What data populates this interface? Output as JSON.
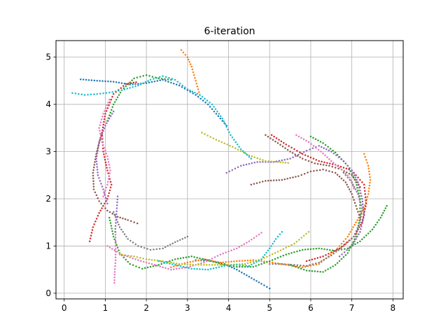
{
  "chart_data": {
    "type": "scatter",
    "title": "6-iteration",
    "xlabel": "",
    "ylabel": "",
    "xlim": [
      -0.2,
      8.25
    ],
    "ylim": [
      -0.12,
      5.35
    ],
    "xticks": [
      0,
      1,
      2,
      3,
      4,
      5,
      6,
      7,
      8
    ],
    "yticks": [
      0,
      1,
      2,
      3,
      4,
      5
    ],
    "grid": true,
    "marker": "small dots",
    "series": [
      {
        "color": "#1f77b4",
        "points": [
          [
            0.4,
            4.53
          ],
          [
            0.8,
            4.5
          ],
          [
            1.2,
            4.48
          ],
          [
            1.6,
            4.42
          ],
          [
            2.0,
            4.45
          ],
          [
            2.4,
            4.52
          ],
          [
            2.8,
            4.4
          ],
          [
            3.2,
            4.2
          ],
          [
            3.5,
            4.0
          ],
          [
            3.75,
            3.75
          ],
          [
            3.95,
            3.55
          ]
        ]
      },
      {
        "color": "#1f77b4",
        "points": [
          [
            3.2,
            0.7
          ],
          [
            3.6,
            0.68
          ],
          [
            3.9,
            0.62
          ],
          [
            4.2,
            0.5
          ],
          [
            4.5,
            0.35
          ],
          [
            4.8,
            0.2
          ],
          [
            5.0,
            0.1
          ]
        ]
      },
      {
        "color": "#ff7f0e",
        "points": [
          [
            2.85,
            5.15
          ],
          [
            3.0,
            5.0
          ],
          [
            3.1,
            4.8
          ],
          [
            3.2,
            4.5
          ],
          [
            3.3,
            4.2
          ]
        ]
      },
      {
        "color": "#ff7f0e",
        "points": [
          [
            2.6,
            0.55
          ],
          [
            3.0,
            0.65
          ],
          [
            3.4,
            0.72
          ],
          [
            3.8,
            0.65
          ],
          [
            4.2,
            0.68
          ],
          [
            4.6,
            0.7
          ],
          [
            5.0,
            0.66
          ],
          [
            5.4,
            0.6
          ],
          [
            5.8,
            0.55
          ],
          [
            6.2,
            0.62
          ],
          [
            6.6,
            0.9
          ],
          [
            6.9,
            1.2
          ],
          [
            7.1,
            1.5
          ],
          [
            7.3,
            1.8
          ],
          [
            7.4,
            2.1
          ],
          [
            7.45,
            2.4
          ],
          [
            7.4,
            2.7
          ],
          [
            7.3,
            2.95
          ]
        ]
      },
      {
        "color": "#2ca02c",
        "points": [
          [
            1.05,
            3.65
          ],
          [
            1.2,
            4.0
          ],
          [
            1.4,
            4.3
          ],
          [
            1.7,
            4.55
          ],
          [
            2.0,
            4.62
          ],
          [
            2.3,
            4.55
          ],
          [
            2.6,
            4.52
          ]
        ]
      },
      {
        "color": "#2ca02c",
        "points": [
          [
            1.1,
            1.6
          ],
          [
            1.2,
            1.2
          ],
          [
            1.35,
            0.85
          ],
          [
            1.6,
            0.62
          ],
          [
            1.9,
            0.52
          ],
          [
            2.3,
            0.6
          ],
          [
            2.7,
            0.72
          ],
          [
            3.1,
            0.78
          ],
          [
            3.5,
            0.7
          ],
          [
            3.9,
            0.6
          ],
          [
            4.2,
            0.56
          ],
          [
            4.6,
            0.56
          ],
          [
            5.0,
            0.68
          ],
          [
            5.4,
            0.82
          ],
          [
            5.8,
            0.92
          ],
          [
            6.2,
            0.95
          ],
          [
            6.6,
            0.9
          ],
          [
            6.9,
            0.95
          ],
          [
            7.2,
            1.1
          ],
          [
            7.5,
            1.35
          ],
          [
            7.7,
            1.6
          ],
          [
            7.85,
            1.85
          ]
        ]
      },
      {
        "color": "#2ca02c",
        "points": [
          [
            6.0,
            3.32
          ],
          [
            6.3,
            3.18
          ],
          [
            6.6,
            2.98
          ],
          [
            6.9,
            2.7
          ],
          [
            7.1,
            2.35
          ],
          [
            7.2,
            2.0
          ],
          [
            7.2,
            1.6
          ],
          [
            7.1,
            1.2
          ],
          [
            6.9,
            0.85
          ],
          [
            6.6,
            0.6
          ],
          [
            6.3,
            0.45
          ],
          [
            5.9,
            0.48
          ],
          [
            5.5,
            0.6
          ]
        ]
      },
      {
        "color": "#d62728",
        "points": [
          [
            1.75,
            4.47
          ],
          [
            1.5,
            4.43
          ],
          [
            1.2,
            4.22
          ],
          [
            1.0,
            3.8
          ],
          [
            0.92,
            3.4
          ],
          [
            0.95,
            3.0
          ],
          [
            1.05,
            2.6
          ],
          [
            1.15,
            2.3
          ],
          [
            1.05,
            2.0
          ],
          [
            0.85,
            1.7
          ],
          [
            0.7,
            1.4
          ],
          [
            0.62,
            1.1
          ]
        ]
      },
      {
        "color": "#d62728",
        "points": [
          [
            5.05,
            3.35
          ],
          [
            5.4,
            3.15
          ],
          [
            5.8,
            2.95
          ],
          [
            6.2,
            2.8
          ],
          [
            6.6,
            2.72
          ],
          [
            7.0,
            2.6
          ],
          [
            7.3,
            2.3
          ],
          [
            7.35,
            1.9
          ],
          [
            7.25,
            1.5
          ],
          [
            7.05,
            1.2
          ],
          [
            6.7,
            0.95
          ],
          [
            6.3,
            0.78
          ],
          [
            5.9,
            0.68
          ]
        ]
      },
      {
        "color": "#9467bd",
        "points": [
          [
            1.2,
            3.85
          ],
          [
            1.0,
            3.55
          ],
          [
            0.85,
            3.2
          ],
          [
            0.78,
            2.85
          ],
          [
            0.82,
            2.5
          ],
          [
            0.95,
            2.2
          ],
          [
            1.05,
            1.9
          ]
        ]
      },
      {
        "color": "#9467bd",
        "points": [
          [
            3.95,
            2.55
          ],
          [
            4.3,
            2.7
          ],
          [
            4.7,
            2.78
          ],
          [
            5.1,
            2.78
          ],
          [
            5.5,
            2.85
          ],
          [
            5.9,
            3.02
          ],
          [
            6.2,
            3.12
          ],
          [
            6.5,
            3.0
          ],
          [
            6.8,
            2.8
          ],
          [
            7.0,
            2.6
          ],
          [
            7.15,
            2.35
          ],
          [
            7.25,
            2.0
          ],
          [
            7.3,
            1.65
          ],
          [
            7.2,
            1.3
          ],
          [
            7.0,
            1.0
          ],
          [
            6.7,
            0.78
          ]
        ]
      },
      {
        "color": "#8c564b",
        "points": [
          [
            0.9,
            3.35
          ],
          [
            0.78,
            2.95
          ],
          [
            0.7,
            2.55
          ],
          [
            0.72,
            2.2
          ],
          [
            0.85,
            1.95
          ],
          [
            1.05,
            1.75
          ],
          [
            1.3,
            1.62
          ],
          [
            1.55,
            1.55
          ],
          [
            1.78,
            1.48
          ]
        ]
      },
      {
        "color": "#8c564b",
        "points": [
          [
            4.55,
            2.3
          ],
          [
            4.9,
            2.38
          ],
          [
            5.3,
            2.4
          ],
          [
            5.7,
            2.48
          ],
          [
            6.0,
            2.58
          ],
          [
            6.3,
            2.62
          ],
          [
            6.6,
            2.55
          ],
          [
            6.85,
            2.35
          ],
          [
            7.0,
            2.1
          ],
          [
            7.1,
            1.85
          ],
          [
            7.2,
            1.6
          ]
        ]
      },
      {
        "color": "#8c564b",
        "points": [
          [
            4.9,
            3.35
          ],
          [
            5.2,
            3.18
          ],
          [
            5.5,
            3.0
          ],
          [
            5.8,
            2.85
          ],
          [
            6.1,
            2.75
          ],
          [
            6.45,
            2.7
          ],
          [
            6.75,
            2.62
          ],
          [
            7.0,
            2.5
          ],
          [
            7.2,
            2.25
          ]
        ]
      },
      {
        "color": "#e377c2",
        "points": [
          [
            1.1,
            4.1
          ],
          [
            0.95,
            3.8
          ],
          [
            0.85,
            3.5
          ],
          [
            0.92,
            3.2
          ],
          [
            1.05,
            2.9
          ],
          [
            1.12,
            2.6
          ],
          [
            1.05,
            2.3
          ],
          [
            0.95,
            2.05
          ]
        ]
      },
      {
        "color": "#e377c2",
        "points": [
          [
            1.05,
            1.0
          ],
          [
            1.4,
            0.82
          ],
          [
            1.8,
            0.7
          ],
          [
            2.2,
            0.6
          ],
          [
            2.6,
            0.5
          ],
          [
            3.0,
            0.55
          ],
          [
            3.4,
            0.65
          ],
          [
            3.8,
            0.82
          ],
          [
            4.2,
            0.95
          ],
          [
            4.5,
            1.1
          ],
          [
            4.8,
            1.28
          ]
        ]
      },
      {
        "color": "#e377c2",
        "points": [
          [
            5.65,
            3.35
          ],
          [
            5.95,
            3.2
          ],
          [
            6.25,
            3.0
          ],
          [
            6.5,
            2.8
          ],
          [
            6.75,
            2.62
          ],
          [
            6.95,
            2.45
          ],
          [
            7.05,
            2.22
          ]
        ]
      },
      {
        "color": "#7f7f7f",
        "points": [
          [
            1.2,
            1.72
          ],
          [
            1.35,
            1.4
          ],
          [
            1.55,
            1.15
          ],
          [
            1.8,
            1.0
          ],
          [
            2.1,
            0.92
          ],
          [
            2.4,
            0.95
          ],
          [
            2.7,
            1.08
          ],
          [
            3.0,
            1.2
          ]
        ]
      },
      {
        "color": "#7f7f7f",
        "points": [
          [
            5.0,
            0.62
          ],
          [
            5.3,
            0.62
          ],
          [
            5.6,
            0.6
          ],
          [
            5.9,
            0.58
          ],
          [
            6.2,
            0.65
          ],
          [
            6.5,
            0.8
          ],
          [
            6.8,
            1.0
          ],
          [
            7.05,
            1.2
          ],
          [
            7.2,
            1.5
          ],
          [
            7.25,
            1.8
          ],
          [
            7.15,
            2.1
          ],
          [
            7.0,
            2.35
          ],
          [
            6.8,
            2.55
          ]
        ]
      },
      {
        "color": "#bcbd22",
        "points": [
          [
            1.35,
            0.82
          ],
          [
            1.7,
            0.78
          ],
          [
            2.0,
            0.72
          ],
          [
            2.4,
            0.68
          ],
          [
            2.8,
            0.62
          ],
          [
            3.2,
            0.6
          ],
          [
            3.6,
            0.6
          ],
          [
            4.0,
            0.6
          ],
          [
            4.4,
            0.62
          ],
          [
            4.8,
            0.72
          ],
          [
            5.2,
            0.88
          ],
          [
            5.6,
            1.05
          ],
          [
            5.95,
            1.3
          ]
        ]
      },
      {
        "color": "#bcbd22",
        "points": [
          [
            3.35,
            3.4
          ],
          [
            3.7,
            3.25
          ],
          [
            4.1,
            3.1
          ],
          [
            4.5,
            2.92
          ],
          [
            4.9,
            2.8
          ],
          [
            5.2,
            2.78
          ],
          [
            5.45,
            2.76
          ]
        ]
      },
      {
        "color": "#17becf",
        "points": [
          [
            0.2,
            4.24
          ],
          [
            0.5,
            4.2
          ],
          [
            0.8,
            4.22
          ],
          [
            1.1,
            4.25
          ],
          [
            1.4,
            4.3
          ],
          [
            1.8,
            4.4
          ],
          [
            2.1,
            4.52
          ],
          [
            2.4,
            4.6
          ],
          [
            2.7,
            4.52
          ],
          [
            3.0,
            4.32
          ],
          [
            3.3,
            4.2
          ],
          [
            3.6,
            4.0
          ],
          [
            3.85,
            3.7
          ],
          [
            4.05,
            3.35
          ],
          [
            4.3,
            3.05
          ],
          [
            4.55,
            2.85
          ]
        ]
      },
      {
        "color": "#17becf",
        "points": [
          [
            2.3,
            0.68
          ],
          [
            2.7,
            0.6
          ],
          [
            3.1,
            0.52
          ],
          [
            3.5,
            0.5
          ],
          [
            3.9,
            0.58
          ],
          [
            4.2,
            0.6
          ],
          [
            4.5,
            0.58
          ],
          [
            4.8,
            0.72
          ],
          [
            5.0,
            0.95
          ],
          [
            5.15,
            1.15
          ],
          [
            5.3,
            1.3
          ]
        ]
      },
      {
        "color": "#e377c2",
        "points": [
          [
            1.25,
            1.3
          ],
          [
            1.25,
            1.0
          ],
          [
            1.25,
            0.7
          ],
          [
            1.23,
            0.45
          ],
          [
            1.22,
            0.22
          ]
        ]
      },
      {
        "color": "#9467bd",
        "points": [
          [
            1.3,
            2.05
          ],
          [
            1.28,
            1.8
          ],
          [
            1.26,
            1.55
          ],
          [
            1.24,
            1.3
          ]
        ]
      }
    ]
  }
}
